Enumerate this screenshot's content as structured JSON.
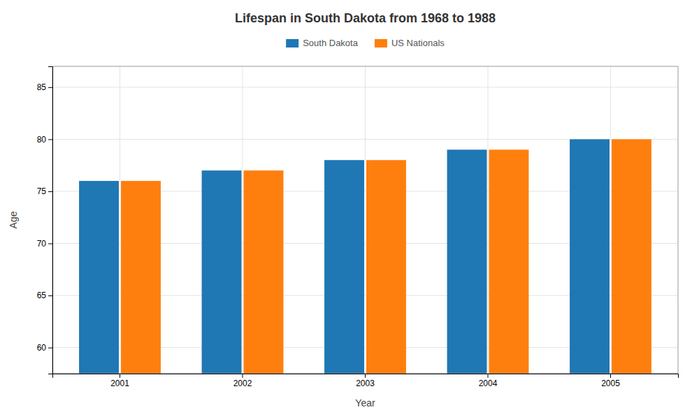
{
  "chart_data": {
    "type": "bar",
    "title": "Lifespan in South Dakota from 1968 to 1988",
    "xlabel": "Year",
    "ylabel": "Age",
    "categories": [
      "2001",
      "2002",
      "2003",
      "2004",
      "2005"
    ],
    "series": [
      {
        "name": "South Dakota",
        "values": [
          76,
          77,
          78,
          79,
          80
        ]
      },
      {
        "name": "US Nationals",
        "values": [
          76,
          77,
          78,
          79,
          80
        ]
      }
    ],
    "ylim": [
      57.5,
      87
    ],
    "yticks": [
      60,
      65,
      70,
      75,
      80,
      85
    ],
    "grid": true,
    "legend": "top"
  }
}
